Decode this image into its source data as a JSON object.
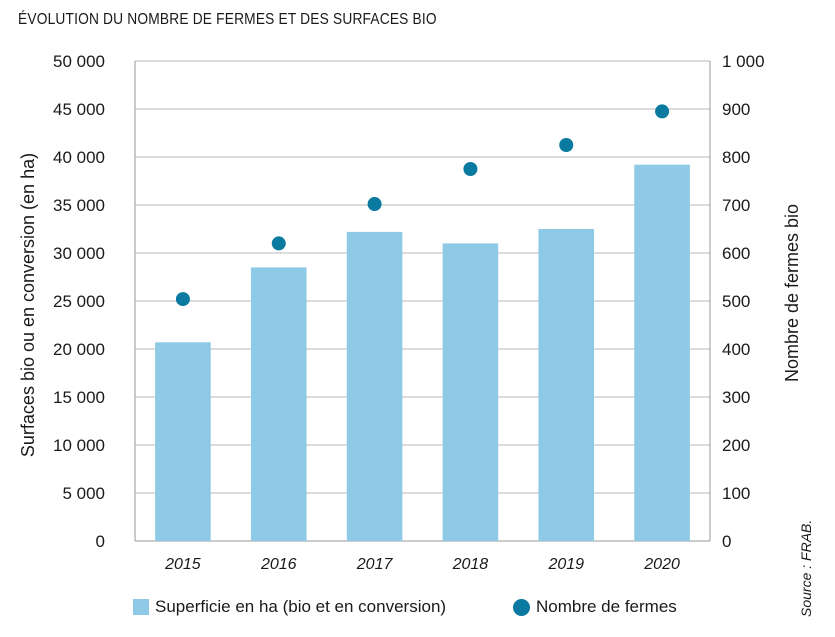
{
  "title": "ÉVOLUTION DU NOMBRE DE FERMES ET DES SURFACES BIO",
  "source": "Source : FRAB.",
  "colors": {
    "bar": "#8ecae6",
    "dot": "#0a7aa0",
    "grid": "#b8b8b8",
    "axis": "#999999"
  },
  "chart_data": {
    "type": "bar",
    "categories": [
      "2015",
      "2016",
      "2017",
      "2018",
      "2019",
      "2020"
    ],
    "series": [
      {
        "name": "Superficie en ha (bio et en conversion)",
        "type": "bar",
        "axis": "left",
        "values": [
          20700,
          28500,
          32200,
          31000,
          32500,
          39200
        ]
      },
      {
        "name": "Nombre de fermes",
        "type": "scatter",
        "axis": "right",
        "values": [
          504,
          620,
          702,
          775,
          825,
          895
        ]
      }
    ],
    "ylabel": "Surfaces bio ou en conversion (en ha)",
    "y2label": "Nombre de fermes bio",
    "ylim": [
      0,
      50000
    ],
    "y2lim": [
      0,
      1000
    ],
    "yticks": [
      "0",
      "5 000",
      "10 000",
      "15 000",
      "20 000",
      "25 000",
      "30 000",
      "35 000",
      "40 000",
      "45 000",
      "50 000"
    ],
    "y2ticks": [
      "0",
      "100",
      "200",
      "300",
      "400",
      "500",
      "600",
      "700",
      "800",
      "900",
      "1 000"
    ],
    "grid": true,
    "legend_position": "bottom"
  }
}
